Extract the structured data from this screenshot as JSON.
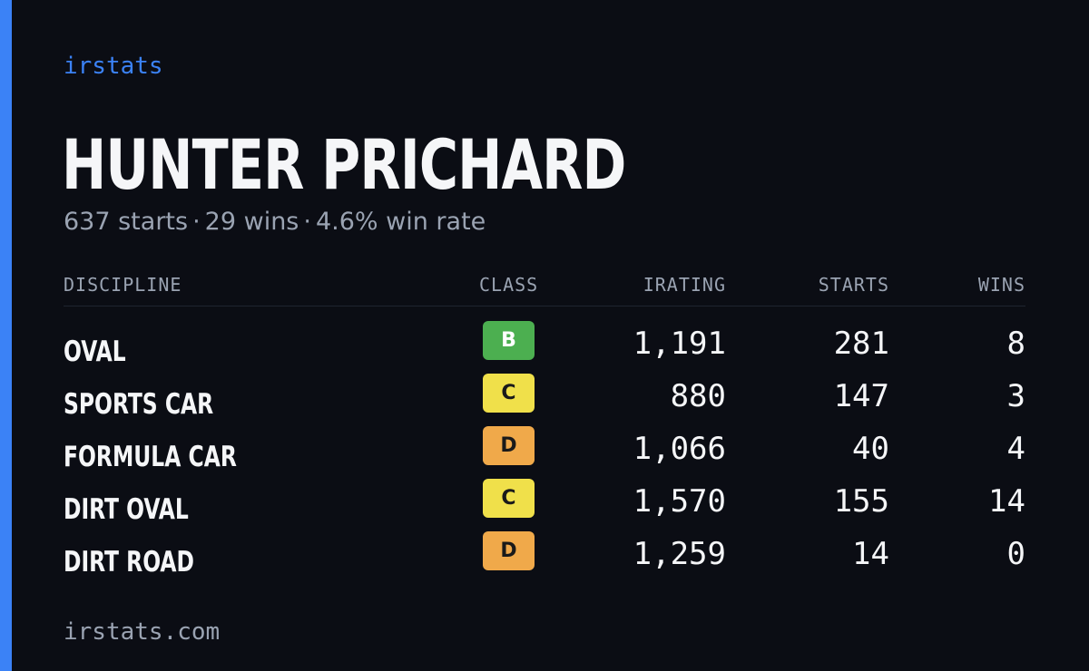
{
  "colors": {
    "accent": "#3b82f6",
    "background": "#0b0d14",
    "muted": "#9aa3b2",
    "class_B": "#4caf50",
    "class_C": "#f0e04a",
    "class_D": "#f0a94a"
  },
  "brand": "irstats",
  "driver": {
    "name": "HUNTER PRICHARD",
    "starts_text": "637 starts",
    "wins_text": "29 wins",
    "win_rate_text": "4.6% win rate",
    "separator": "·"
  },
  "table": {
    "headers": {
      "discipline": "DISCIPLINE",
      "class": "CLASS",
      "irating": "IRATING",
      "starts": "STARTS",
      "wins": "WINS"
    },
    "rows": [
      {
        "discipline": "OVAL",
        "class": "B",
        "irating": "1,191",
        "starts": "281",
        "wins": "8"
      },
      {
        "discipline": "SPORTS CAR",
        "class": "C",
        "irating": "880",
        "starts": "147",
        "wins": "3"
      },
      {
        "discipline": "FORMULA CAR",
        "class": "D",
        "irating": "1,066",
        "starts": "40",
        "wins": "4"
      },
      {
        "discipline": "DIRT OVAL",
        "class": "C",
        "irating": "1,570",
        "starts": "155",
        "wins": "14"
      },
      {
        "discipline": "DIRT ROAD",
        "class": "D",
        "irating": "1,259",
        "starts": "14",
        "wins": "0"
      }
    ]
  },
  "footer": "irstats.com"
}
